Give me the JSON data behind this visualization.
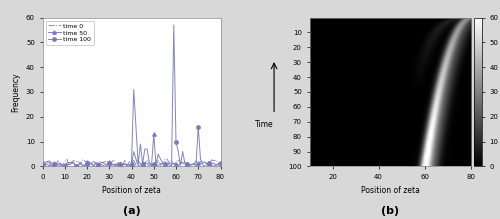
{
  "panel_a": {
    "xlim": [
      0,
      80
    ],
    "ylim": [
      0,
      60
    ],
    "xticks": [
      0,
      10,
      20,
      30,
      40,
      50,
      60,
      70,
      80
    ],
    "yticks": [
      0,
      10,
      20,
      30,
      40,
      50,
      60
    ],
    "xlabel": "Position of zeta",
    "ylabel": "Frequency",
    "label_a": "(a)",
    "legend": [
      "time 0",
      "time 50",
      "time 100"
    ],
    "line_color": "#7777bb",
    "bg_color": "#ffffff"
  },
  "panel_b": {
    "xlim": [
      10,
      80
    ],
    "ylim": [
      100,
      0
    ],
    "xticks": [
      20,
      40,
      60,
      80
    ],
    "yticks": [
      10,
      20,
      30,
      40,
      50,
      60,
      70,
      80,
      90,
      100
    ],
    "xlabel": "Position of zeta",
    "ylabel": "Time",
    "clim": [
      0,
      60
    ],
    "cbar_ticks": [
      0,
      10,
      20,
      30,
      40,
      50,
      60
    ],
    "label_b": "(b)"
  },
  "figure_bg": "#d8d8d8"
}
